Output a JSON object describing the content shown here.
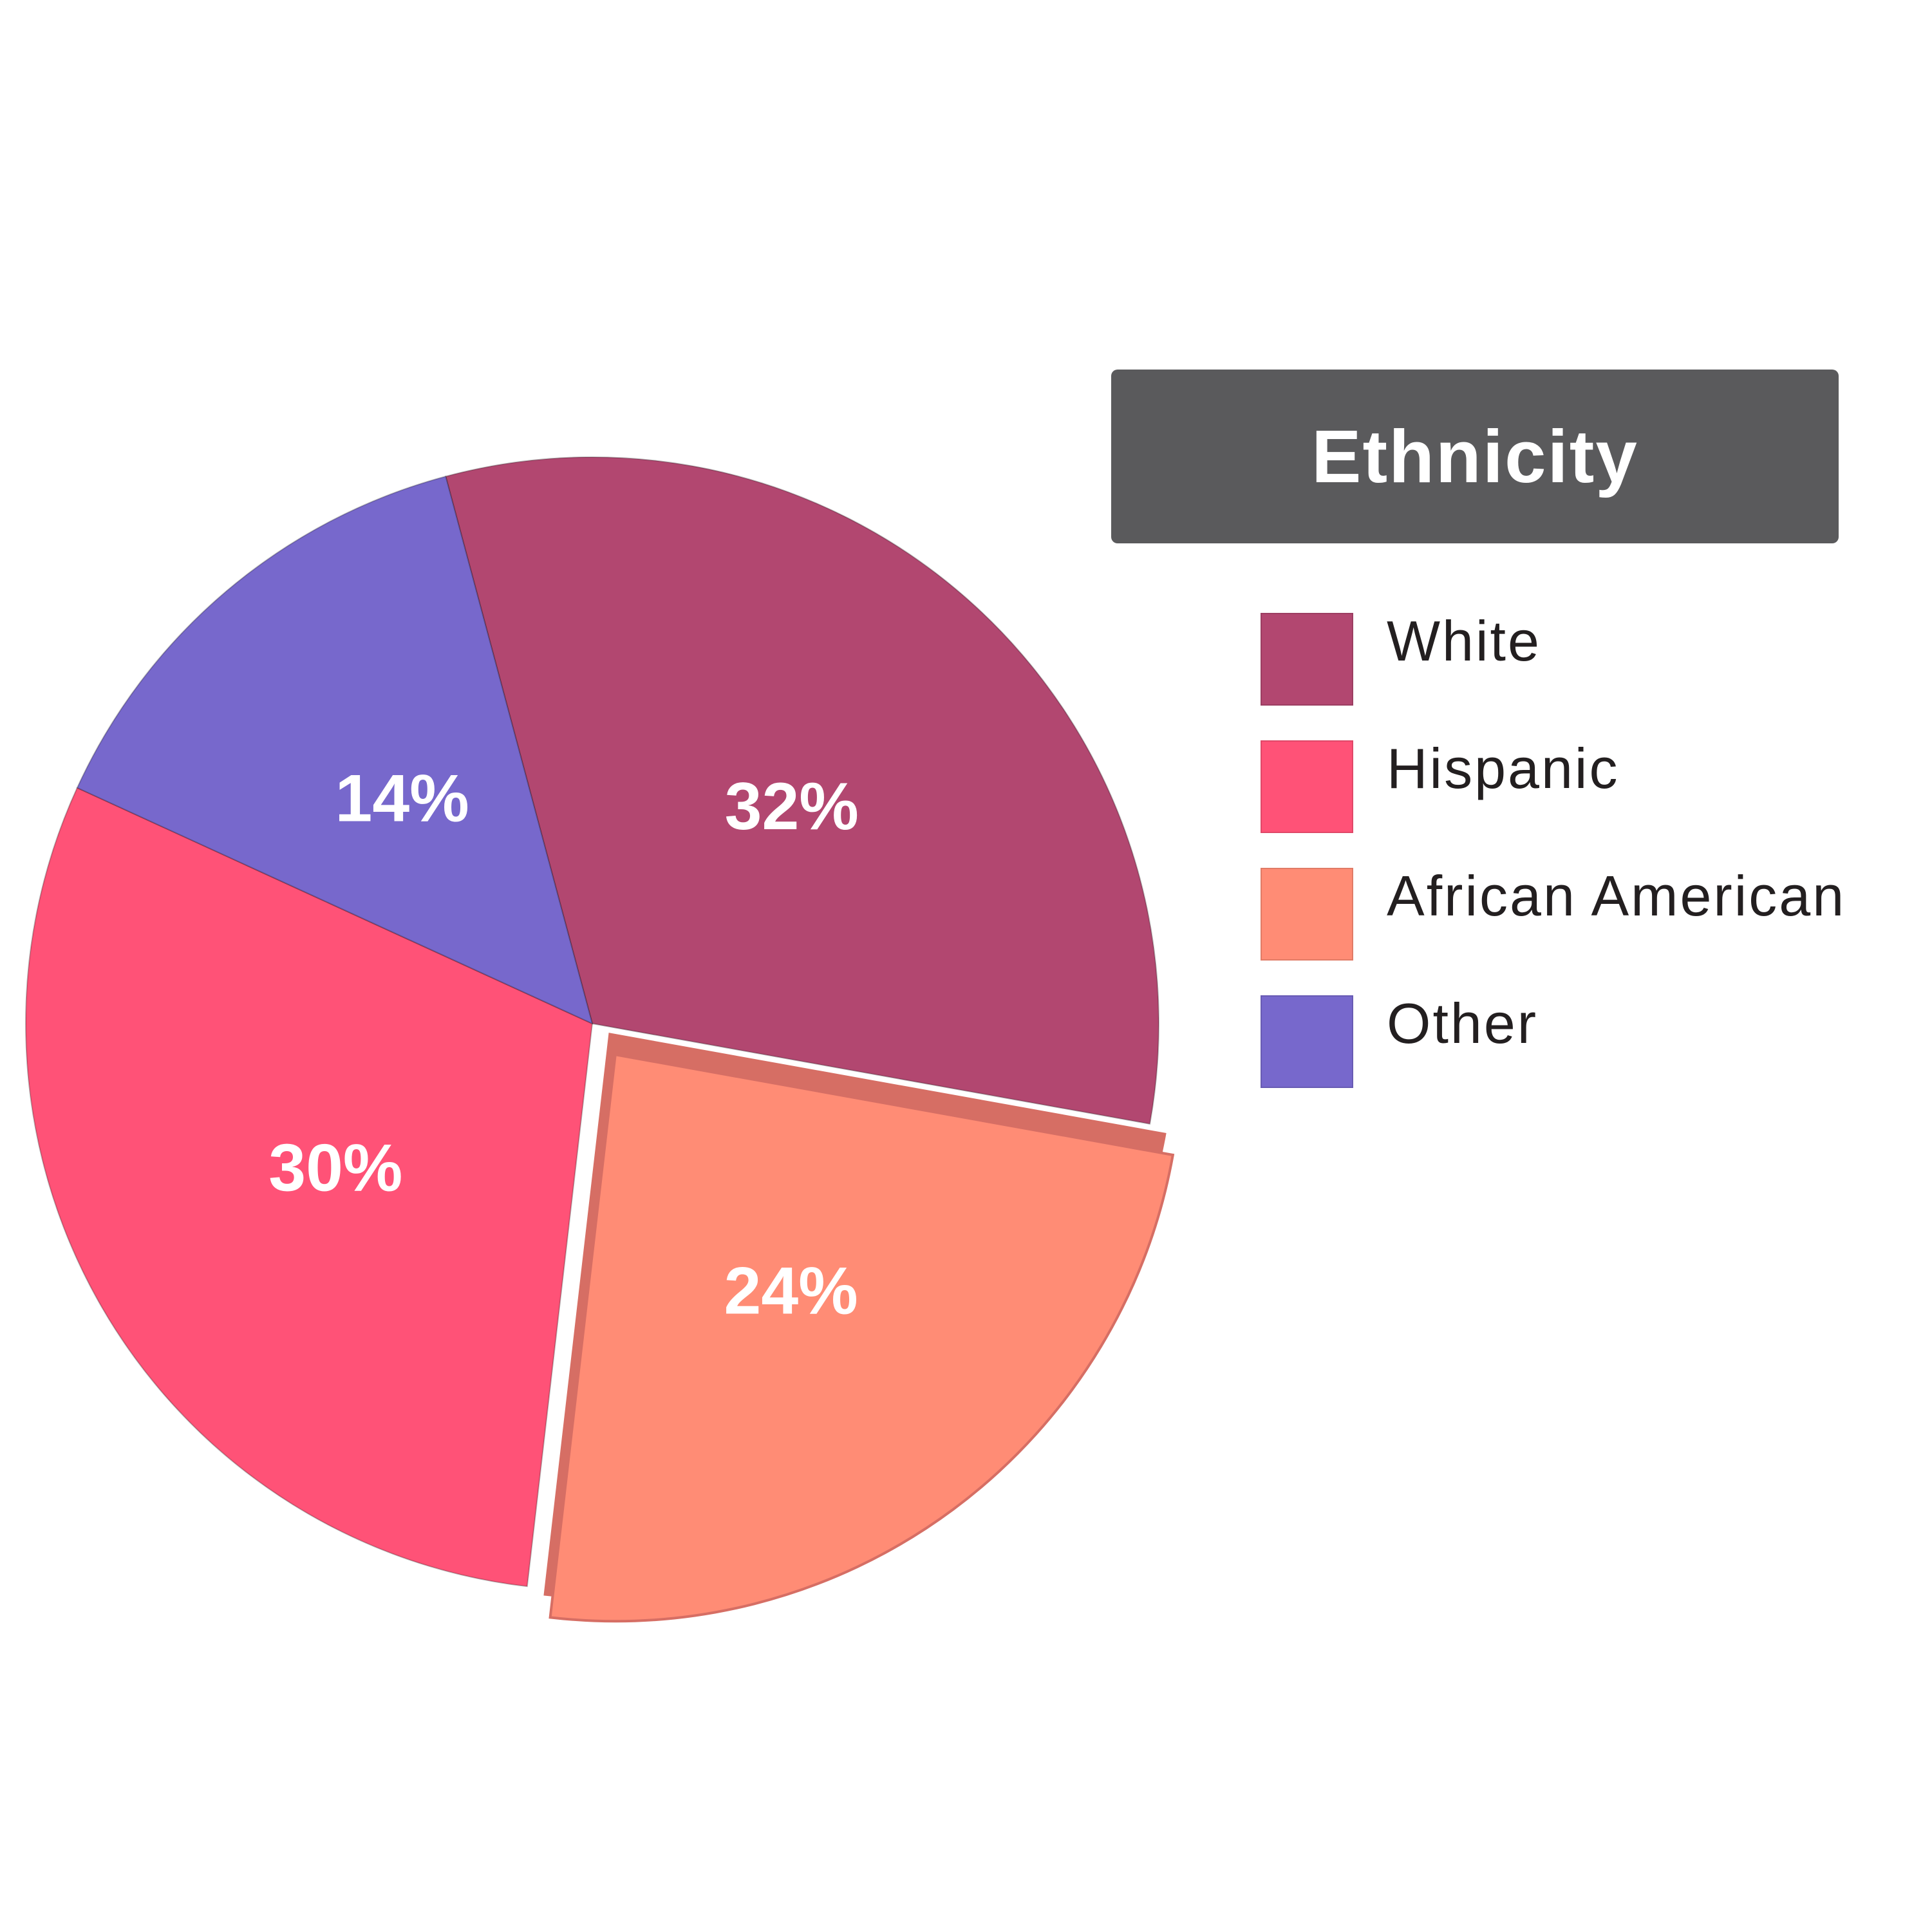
{
  "chart_data": {
    "type": "pie",
    "legend_title": "Ethnicity",
    "legend_position": "right",
    "exploded_slice": "African American",
    "slices": [
      {
        "label": "White",
        "value": 32,
        "display": "32%",
        "color": "#b24770"
      },
      {
        "label": "African American",
        "value": 24,
        "display": "24%",
        "color": "#ff8c75"
      },
      {
        "label": "Hispanic",
        "value": 30,
        "display": "30%",
        "color": "#ff5277"
      },
      {
        "label": "Other",
        "value": 14,
        "display": "14%",
        "color": "#7768cc"
      }
    ],
    "legend_order": [
      "White",
      "Hispanic",
      "African American",
      "Other"
    ],
    "edge_color": "#d66e64"
  }
}
